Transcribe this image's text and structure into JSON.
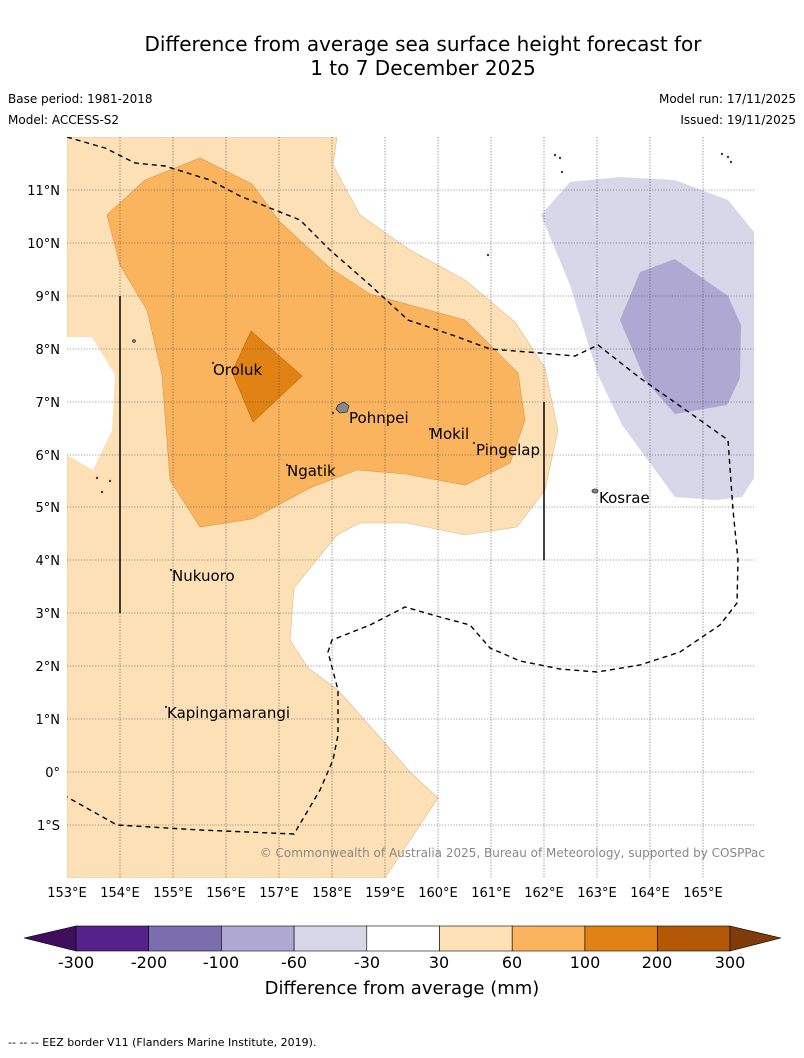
{
  "header": {
    "title_line1": "Difference from average sea surface height forecast for",
    "title_line2": "1 to 7 December 2025",
    "base_period": "Base period: 1981-2018",
    "model": "Model: ACCESS-S2",
    "model_run": "Model run: 17/11/2025",
    "issued": "Issued: 19/11/2025"
  },
  "map": {
    "lat_labels": [
      "11°N",
      "10°N",
      "9°N",
      "8°N",
      "7°N",
      "6°N",
      "5°N",
      "4°N",
      "3°N",
      "2°N",
      "1°N",
      "0°",
      "1°S"
    ],
    "lon_labels": [
      "153°E",
      "154°E",
      "155°E",
      "156°E",
      "157°E",
      "158°E",
      "159°E",
      "160°E",
      "161°E",
      "162°E",
      "163°E",
      "164°E",
      "165°E"
    ],
    "places": [
      "Oroluk",
      "Pohnpei",
      "Mokil",
      "Pingelap",
      "Ngatik",
      "Kosrae",
      "Nukuoro",
      "Kapingamarangi"
    ],
    "copyright": "© Commonwealth of Australia 2025, Bureau of Meteorology, supported by COSPPac"
  },
  "colorbar": {
    "ticks": [
      "-300",
      "-200",
      "-100",
      "-60",
      "-30",
      "30",
      "60",
      "100",
      "200",
      "300"
    ],
    "colors": [
      "#3f0f5e",
      "#55218a",
      "#7b6eae",
      "#aea8d2",
      "#d8d7ea",
      "#ffffff",
      "#fde0b5",
      "#fbb45e",
      "#e08214",
      "#b35806",
      "#7f3b08"
    ],
    "label": "Difference from average (mm)"
  },
  "footer": {
    "legend": "--  --  -- EEZ border V11 (Flanders Marine Institute, 2019)."
  }
}
